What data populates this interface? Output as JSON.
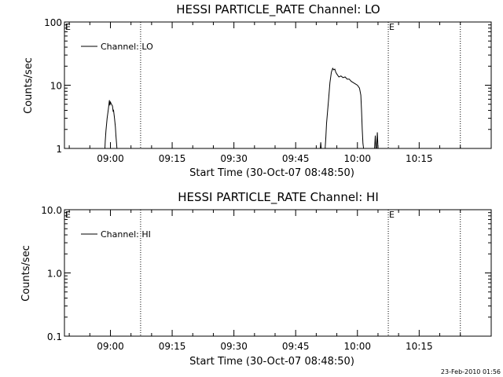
{
  "footer": {
    "timestamp": "23-Feb-2010 01:56"
  },
  "chart_data": [
    {
      "type": "line",
      "title": "HESSI PARTICLE_RATE Channel: LO",
      "xlabel": "Start Time (30-Oct-07 08:48:50)",
      "ylabel": "Counts/sec",
      "yscale": "log",
      "ylim": [
        1,
        100
      ],
      "xlim": [
        "08:48:50",
        "10:32:30"
      ],
      "xticks": [
        "09:00",
        "09:15",
        "09:30",
        "09:45",
        "10:00",
        "10:15"
      ],
      "yticks": [
        "1",
        "10",
        "100"
      ],
      "legend": {
        "entries": [
          "Channel: LO"
        ],
        "position": "top-left"
      },
      "markers": [
        {
          "time": "08:48:50",
          "label": "E"
        },
        {
          "time": "09:07:20",
          "label": ""
        },
        {
          "time": "10:07:30",
          "label": "E"
        },
        {
          "time": "10:25:00",
          "label": ""
        }
      ],
      "series": [
        {
          "name": "Channel: LO",
          "segments": [
            [
              [
                "08:58:40",
                1.0
              ],
              [
                "08:58:45",
                1.3
              ],
              [
                "08:58:55",
                1.9
              ],
              [
                "08:59:12",
                3.0
              ],
              [
                "08:59:30",
                4.2
              ],
              [
                "08:59:45",
                5.8
              ],
              [
                "08:59:52",
                4.8
              ],
              [
                "09:00:00",
                5.4
              ],
              [
                "09:00:15",
                5.0
              ],
              [
                "09:00:30",
                4.7
              ],
              [
                "09:00:40",
                3.8
              ],
              [
                "09:00:45",
                4.1
              ],
              [
                "09:01:00",
                3.0
              ],
              [
                "09:01:12",
                2.2
              ],
              [
                "09:01:20",
                1.6
              ],
              [
                "09:01:30",
                1.2
              ],
              [
                "09:01:35",
                1.0
              ]
            ],
            [
              [
                "09:51:00",
                1.0
              ],
              [
                "09:51:05",
                1.25
              ],
              [
                "09:51:12",
                1.0
              ],
              [
                "09:52:10",
                1.0
              ],
              [
                "09:52:20",
                1.5
              ],
              [
                "09:52:30",
                2.5
              ],
              [
                "09:53:00",
                6.0
              ],
              [
                "09:53:20",
                11.0
              ],
              [
                "09:53:40",
                16.0
              ],
              [
                "09:54:00",
                18.5
              ],
              [
                "09:54:15",
                17.5
              ],
              [
                "09:54:30",
                18.0
              ],
              [
                "09:54:45",
                16.0
              ],
              [
                "09:55:00",
                15.0
              ],
              [
                "09:55:30",
                13.5
              ],
              [
                "09:56:00",
                14.0
              ],
              [
                "09:56:30",
                13.2
              ],
              [
                "09:57:00",
                13.5
              ],
              [
                "09:57:30",
                12.5
              ],
              [
                "09:58:00",
                12.5
              ],
              [
                "09:58:30",
                11.5
              ],
              [
                "09:59:00",
                11.0
              ],
              [
                "09:59:30",
                10.5
              ],
              [
                "10:00:00",
                10.0
              ],
              [
                "10:00:30",
                9.0
              ],
              [
                "10:00:50",
                7.0
              ],
              [
                "10:01:00",
                4.0
              ],
              [
                "10:01:10",
                2.0
              ],
              [
                "10:01:20",
                1.2
              ],
              [
                "10:01:30",
                1.0
              ]
            ],
            [
              [
                "10:04:10",
                1.0
              ],
              [
                "10:04:20",
                1.6
              ],
              [
                "10:04:30",
                1.0
              ]
            ],
            [
              [
                "10:04:40",
                1.0
              ],
              [
                "10:04:50",
                1.8
              ],
              [
                "10:05:00",
                1.0
              ]
            ]
          ]
        }
      ]
    },
    {
      "type": "line",
      "title": "HESSI PARTICLE_RATE Channel: HI",
      "xlabel": "Start Time (30-Oct-07 08:48:50)",
      "ylabel": "Counts/sec",
      "yscale": "log",
      "ylim": [
        0.1,
        10
      ],
      "xlim": [
        "08:48:50",
        "10:32:30"
      ],
      "xticks": [
        "09:00",
        "09:15",
        "09:30",
        "09:45",
        "10:00",
        "10:15"
      ],
      "yticks": [
        "0.1",
        "1.0",
        "10.0"
      ],
      "legend": {
        "entries": [
          "Channel: HI"
        ],
        "position": "top-left"
      },
      "markers": [
        {
          "time": "08:48:50",
          "label": "E"
        },
        {
          "time": "09:07:20",
          "label": ""
        },
        {
          "time": "10:07:30",
          "label": "E"
        },
        {
          "time": "10:25:00",
          "label": ""
        }
      ],
      "series": [
        {
          "name": "Channel: HI",
          "segments": []
        }
      ]
    }
  ]
}
